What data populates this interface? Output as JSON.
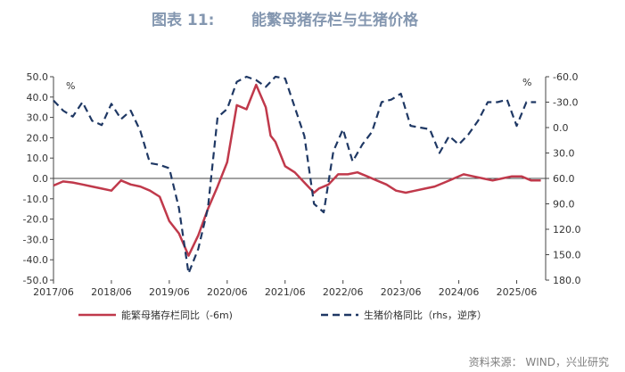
{
  "header": {
    "figure_label": "图表 11:",
    "title": "能繁母猪存栏与生猪价格"
  },
  "source": "资料来源： WIND，兴业研究",
  "chart_data": {
    "type": "line",
    "title": "能繁母猪存栏与生猪价格",
    "x_ticks": [
      "2017/06",
      "2018/06",
      "2019/06",
      "2020/06",
      "2021/06",
      "2022/06",
      "2023/06",
      "2024/06",
      "2025/06"
    ],
    "x_range": [
      "2017/06",
      "2025/12"
    ],
    "left_axis": {
      "unit": "%",
      "range": [
        -50,
        50
      ],
      "ticks": [
        "50.0",
        "40.0",
        "30.0",
        "20.0",
        "10.0",
        "0.0",
        "-10.0",
        "-20.0",
        "-30.0",
        "-40.0",
        "-50.0"
      ]
    },
    "right_axis": {
      "unit": "%",
      "range": [
        -60,
        180
      ],
      "reversed": true,
      "ticks": [
        "-60.0",
        "-30.0",
        "0.0",
        "30.0",
        "60.0",
        "90.0",
        "120.0",
        "150.0",
        "180.0"
      ]
    },
    "grid": false,
    "legend_position": "bottom",
    "series": [
      {
        "name": "能繁母猪存栏同比（-6m)",
        "axis": "left",
        "color": "#c0394b",
        "style": "solid",
        "x": [
          "2017/06",
          "2017/08",
          "2017/10",
          "2017/12",
          "2018/02",
          "2018/04",
          "2018/06",
          "2018/08",
          "2018/10",
          "2018/12",
          "2019/02",
          "2019/04",
          "2019/06",
          "2019/08",
          "2019/10",
          "2019/12",
          "2020/02",
          "2020/04",
          "2020/06",
          "2020/08",
          "2020/10",
          "2020/12",
          "2021/02",
          "2021/03",
          "2021/04",
          "2021/06",
          "2021/08",
          "2021/10",
          "2021/12",
          "2022/01",
          "2022/03",
          "2022/05",
          "2022/07",
          "2022/09",
          "2022/11",
          "2023/01",
          "2023/03",
          "2023/05",
          "2023/07",
          "2023/09",
          "2023/11",
          "2024/01",
          "2024/03",
          "2024/05",
          "2024/07",
          "2024/09",
          "2024/11",
          "2025/01",
          "2025/03",
          "2025/05",
          "2025/07",
          "2025/09",
          "2025/11"
        ],
        "values": [
          -3.5,
          -1.5,
          -2,
          -3,
          -4,
          -5,
          -6,
          -1,
          -3,
          -4,
          -6,
          -9,
          -21,
          -27,
          -38,
          -28,
          -15,
          -4,
          8,
          36,
          34,
          46,
          35,
          21,
          18,
          6,
          3,
          -2,
          -7,
          -5,
          -3,
          2,
          2,
          3,
          1,
          -1,
          -3,
          -6,
          -7,
          -6,
          -5,
          -4,
          -2,
          0,
          2,
          1,
          0,
          -1,
          0,
          1,
          1,
          -1,
          -1
        ],
        "note": "values read from left axis"
      },
      {
        "name": "生猪价格同比（rhs，逆序）",
        "axis": "right",
        "color": "#1f3864",
        "style": "dashed",
        "x": [
          "2017/06",
          "2017/08",
          "2017/10",
          "2017/12",
          "2018/02",
          "2018/04",
          "2018/06",
          "2018/08",
          "2018/10",
          "2018/12",
          "2019/02",
          "2019/04",
          "2019/06",
          "2019/08",
          "2019/10",
          "2019/12",
          "2020/02",
          "2020/04",
          "2020/06",
          "2020/08",
          "2020/10",
          "2020/12",
          "2021/02",
          "2021/04",
          "2021/06",
          "2021/08",
          "2021/10",
          "2021/12",
          "2022/02",
          "2022/04",
          "2022/06",
          "2022/08",
          "2022/10",
          "2022/12",
          "2023/02",
          "2023/04",
          "2023/06",
          "2023/08",
          "2023/10",
          "2023/12",
          "2024/02",
          "2024/04",
          "2024/06",
          "2024/08",
          "2024/10",
          "2024/12",
          "2025/02",
          "2025/04",
          "2025/06",
          "2025/08",
          "2025/10"
        ],
        "values": [
          -32,
          -20,
          -13,
          -30,
          -8,
          -3,
          -28,
          -10,
          -20,
          4,
          42,
          44,
          48,
          95,
          172,
          143,
          95,
          -12,
          -22,
          -54,
          -60,
          -56,
          -48,
          -60,
          -58,
          -24,
          10,
          90,
          100,
          28,
          2,
          40,
          20,
          5,
          -30,
          -33,
          -40,
          -2,
          0,
          2,
          30,
          10,
          20,
          8,
          -8,
          -30,
          -30,
          -33,
          -2,
          -30,
          -30
        ]
      }
    ]
  }
}
